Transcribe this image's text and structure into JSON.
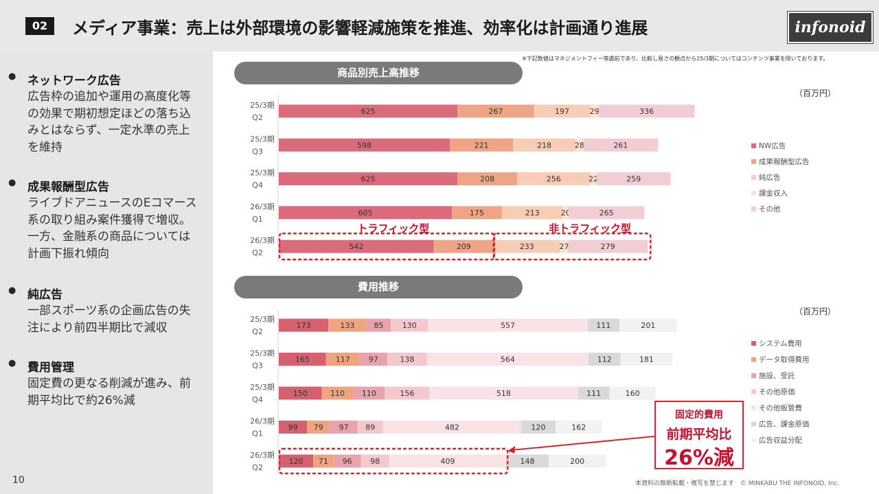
{
  "header": {
    "badge": "02",
    "title": "メディア事業：売上は外部環境の影響軽減施策を推進、効率化は計画通り進展",
    "logo": "infonoid"
  },
  "sidebar": {
    "sections": [
      {
        "heading": "ネットワーク広告",
        "body": "広告枠の追加や運用の高度化等の効果で期初想定ほどの落ち込みとはならず、一定水準の売上を維持"
      },
      {
        "heading": "成果報酬型広告",
        "body": "ライブドアニュースのEコマース系の取り組み案件獲得で増収。一方、金融系の商品については計画下振れ傾向"
      },
      {
        "heading": "純広告",
        "body": "一部スポーツ系の企画広告の失注により前四半期比で減収"
      },
      {
        "heading": "費用管理",
        "body": "固定費の更なる削減が進み、前期平均比で約26%減"
      }
    ]
  },
  "page_number": "10",
  "note": "※下記数値はマネジメントフィー等處前であり、比較し易さの観点から25/3期についてはコンテンツ事業を除いております。",
  "footer": "本資料の無断転載・複写を禁じます　© MINKABU THE INFONOID, Inc.",
  "callout": {
    "line1": "固定的費用",
    "line2": "前期平均比",
    "line3": "26%減"
  },
  "chart_data": [
    {
      "type": "bar",
      "orientation": "horizontal",
      "stacked": true,
      "title": "商品別売上高推移",
      "unit": "（百万円）",
      "categories": [
        "25/3期 Q2",
        "25/3期 Q3",
        "25/3期 Q4",
        "26/3期 Q1",
        "26/3期 Q2"
      ],
      "series": [
        {
          "name": "NW広告",
          "color": "#d96b7b",
          "values": [
            625,
            598,
            625,
            605,
            542
          ]
        },
        {
          "name": "成果報酬型広告",
          "color": "#eda585",
          "values": [
            267,
            221,
            208,
            175,
            209
          ]
        },
        {
          "name": "純広告",
          "color": "#f7cdb6",
          "values": [
            197,
            218,
            256,
            213,
            233
          ]
        },
        {
          "name": "課金収入",
          "color": "#fbe3cf",
          "values": [
            29,
            28,
            22,
            20,
            27
          ]
        },
        {
          "name": "その他",
          "color": "#f3cdd4",
          "values": [
            336,
            261,
            259,
            265,
            279
          ]
        }
      ],
      "annotations": [
        "トラフィック型",
        "非トラフィック型"
      ],
      "legend": "right"
    },
    {
      "type": "bar",
      "orientation": "horizontal",
      "stacked": true,
      "title": "費用推移",
      "unit": "（百万円）",
      "categories": [
        "25/3期 Q2",
        "25/3期 Q3",
        "25/3期 Q4",
        "26/3期 Q1",
        "26/3期 Q2"
      ],
      "series": [
        {
          "name": "システム費用",
          "color": "#d5616f",
          "values": [
            173,
            165,
            150,
            99,
            120
          ]
        },
        {
          "name": "データ取得費用",
          "color": "#eea57f",
          "values": [
            133,
            117,
            110,
            79,
            71
          ]
        },
        {
          "name": "施設、受託",
          "color": "#e9a3ad",
          "values": [
            85,
            97,
            110,
            97,
            96
          ]
        },
        {
          "name": "その他原価",
          "color": "#f3c9ce",
          "values": [
            130,
            138,
            156,
            89,
            98
          ]
        },
        {
          "name": "その他販管費",
          "color": "#fae3e6",
          "values": [
            557,
            564,
            518,
            482,
            409
          ]
        },
        {
          "name": "広告、課金原価",
          "color": "#d9d9d9",
          "values": [
            111,
            112,
            111,
            120,
            148
          ]
        },
        {
          "name": "広告収益分配",
          "color": "#f2f2f2",
          "values": [
            201,
            181,
            160,
            162,
            200
          ]
        }
      ],
      "legend": "right"
    }
  ]
}
